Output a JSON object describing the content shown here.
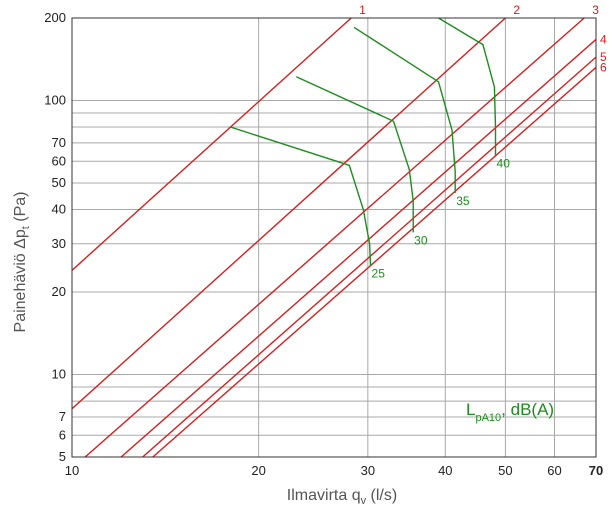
{
  "chart_data": {
    "type": "line",
    "x_scale": "log",
    "y_scale": "log",
    "xlim": [
      10,
      70
    ],
    "ylim": [
      5,
      200
    ],
    "grid": true,
    "xlabel": {
      "main": "Ilmavirta q",
      "sub": "v",
      "unit": " (l/s)"
    },
    "ylabel": {
      "main": "Painehäviö Δp",
      "sub": "t",
      "unit": " (Pa)"
    },
    "x_ticks": [
      {
        "value": 10,
        "label": "10",
        "bold": false
      },
      {
        "value": 20,
        "label": "20",
        "bold": false
      },
      {
        "value": 30,
        "label": "30",
        "bold": false
      },
      {
        "value": 40,
        "label": "40",
        "bold": false
      },
      {
        "value": 50,
        "label": "50",
        "bold": false
      },
      {
        "value": 60,
        "label": "60",
        "bold": false
      },
      {
        "value": 70,
        "label": "70",
        "bold": true
      }
    ],
    "y_ticks": [
      {
        "value": 5,
        "label": "5"
      },
      {
        "value": 6,
        "label": "6"
      },
      {
        "value": 7,
        "label": "7"
      },
      {
        "value": 10,
        "label": "10"
      },
      {
        "value": 20,
        "label": "20"
      },
      {
        "value": 30,
        "label": "30"
      },
      {
        "value": 40,
        "label": "40"
      },
      {
        "value": 50,
        "label": "50"
      },
      {
        "value": 60,
        "label": "60"
      },
      {
        "value": 70,
        "label": "70"
      },
      {
        "value": 100,
        "label": "100"
      },
      {
        "value": 200,
        "label": "200"
      }
    ],
    "x_grid": [
      10,
      20,
      30,
      40,
      50,
      60,
      70
    ],
    "y_grid": [
      5,
      6,
      7,
      8,
      9,
      10,
      20,
      30,
      40,
      50,
      60,
      70,
      80,
      90,
      100,
      200
    ],
    "series": [
      {
        "name": "1",
        "color": "#d42020",
        "points": [
          [
            10,
            24
          ],
          [
            28.2,
            200
          ]
        ]
      },
      {
        "name": "2",
        "color": "#d42020",
        "points": [
          [
            10,
            7.5
          ],
          [
            50,
            200
          ]
        ]
      },
      {
        "name": "3",
        "color": "#d42020",
        "points": [
          [
            10.5,
            5
          ],
          [
            67,
            200
          ]
        ]
      },
      {
        "name": "4",
        "color": "#d42020",
        "points": [
          [
            12,
            5
          ],
          [
            70,
            167
          ]
        ]
      },
      {
        "name": "5",
        "color": "#d42020",
        "points": [
          [
            13,
            5
          ],
          [
            70,
            144
          ]
        ]
      },
      {
        "name": "6",
        "color": "#d42020",
        "points": [
          [
            13.5,
            5
          ],
          [
            70,
            132
          ]
        ]
      }
    ],
    "sound_curves": [
      {
        "label": "25",
        "color": "#1e8c1e",
        "points": [
          [
            18,
            80
          ],
          [
            28,
            58
          ],
          [
            29.5,
            40
          ],
          [
            30.2,
            30
          ],
          [
            30.3,
            25
          ]
        ]
      },
      {
        "label": "30",
        "color": "#1e8c1e",
        "points": [
          [
            23,
            122
          ],
          [
            33,
            84
          ],
          [
            35,
            56
          ],
          [
            35.5,
            43
          ],
          [
            35.5,
            33
          ]
        ]
      },
      {
        "label": "35",
        "color": "#1e8c1e",
        "points": [
          [
            28.5,
            185
          ],
          [
            39,
            117
          ],
          [
            41,
            78
          ],
          [
            41.5,
            55
          ],
          [
            41.5,
            46
          ]
        ]
      },
      {
        "label": "40",
        "color": "#1e8c1e",
        "points": [
          [
            39,
            200
          ],
          [
            46,
            160
          ],
          [
            48,
            112
          ],
          [
            48.2,
            80
          ],
          [
            48.2,
            63
          ]
        ]
      }
    ],
    "legend": {
      "main": "L",
      "sub": "pA10",
      "rest": ", dB(A)",
      "color": "#1e8c1e",
      "placement": "bottom-right"
    }
  }
}
